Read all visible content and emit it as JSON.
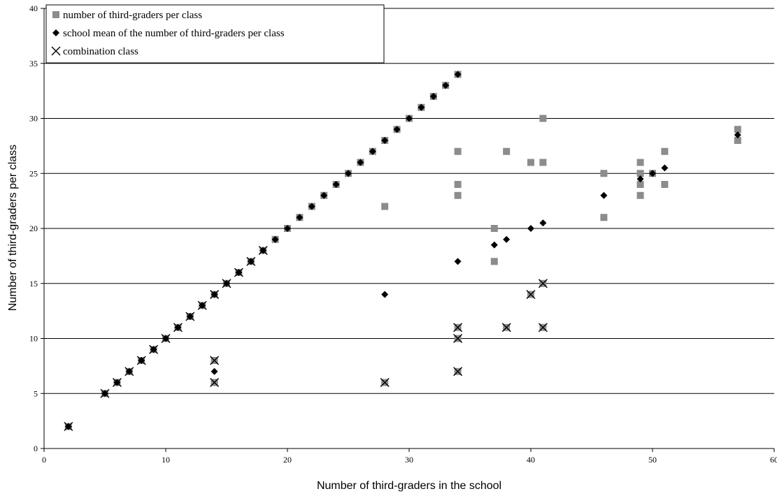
{
  "chart_data": {
    "type": "scatter",
    "title": "",
    "xlabel": "Number of third-graders in the school",
    "ylabel": "Number of third-graders per class",
    "xlim": [
      0,
      60
    ],
    "ylim": [
      0,
      40
    ],
    "xticks": [
      "0",
      "10",
      "20",
      "30",
      "40",
      "50",
      "60"
    ],
    "yticks": [
      "0",
      "5",
      "10",
      "15",
      "20",
      "25",
      "30",
      "35",
      "40"
    ],
    "grid": "horizontal",
    "legend_position": "top-left",
    "series": [
      {
        "name": "number of third-graders per class",
        "marker": "square",
        "color": "#8c8c8c",
        "points": [
          [
            2,
            2
          ],
          [
            5,
            5
          ],
          [
            6,
            6
          ],
          [
            7,
            7
          ],
          [
            8,
            8
          ],
          [
            9,
            9
          ],
          [
            10,
            10
          ],
          [
            11,
            11
          ],
          [
            12,
            12
          ],
          [
            13,
            13
          ],
          [
            14,
            14
          ],
          [
            15,
            15
          ],
          [
            16,
            16
          ],
          [
            17,
            17
          ],
          [
            18,
            18
          ],
          [
            19,
            19
          ],
          [
            20,
            20
          ],
          [
            21,
            21
          ],
          [
            22,
            22
          ],
          [
            23,
            23
          ],
          [
            24,
            24
          ],
          [
            25,
            25
          ],
          [
            26,
            26
          ],
          [
            27,
            27
          ],
          [
            28,
            28
          ],
          [
            29,
            29
          ],
          [
            30,
            30
          ],
          [
            31,
            31
          ],
          [
            32,
            32
          ],
          [
            33,
            33
          ],
          [
            34,
            34
          ],
          [
            14,
            8
          ],
          [
            14,
            6
          ],
          [
            28,
            22
          ],
          [
            28,
            6
          ],
          [
            34,
            27
          ],
          [
            34,
            24
          ],
          [
            34,
            23
          ],
          [
            34,
            11
          ],
          [
            34,
            10
          ],
          [
            34,
            7
          ],
          [
            37,
            20
          ],
          [
            37,
            17
          ],
          [
            38,
            27
          ],
          [
            38,
            11
          ],
          [
            40,
            26
          ],
          [
            40,
            14
          ],
          [
            41,
            30
          ],
          [
            41,
            26
          ],
          [
            41,
            15
          ],
          [
            41,
            11
          ],
          [
            46,
            25
          ],
          [
            46,
            21
          ],
          [
            49,
            26
          ],
          [
            49,
            25
          ],
          [
            49,
            24
          ],
          [
            49,
            23
          ],
          [
            50,
            25
          ],
          [
            51,
            27
          ],
          [
            51,
            24
          ],
          [
            57,
            29
          ],
          [
            57,
            28
          ]
        ]
      },
      {
        "name": "school mean of the number of third-graders per class",
        "marker": "diamond",
        "color": "#000000",
        "points": [
          [
            2,
            2
          ],
          [
            5,
            5
          ],
          [
            6,
            6
          ],
          [
            7,
            7
          ],
          [
            8,
            8
          ],
          [
            9,
            9
          ],
          [
            10,
            10
          ],
          [
            11,
            11
          ],
          [
            12,
            12
          ],
          [
            13,
            13
          ],
          [
            14,
            14
          ],
          [
            15,
            15
          ],
          [
            16,
            16
          ],
          [
            17,
            17
          ],
          [
            18,
            18
          ],
          [
            19,
            19
          ],
          [
            20,
            20
          ],
          [
            21,
            21
          ],
          [
            22,
            22
          ],
          [
            23,
            23
          ],
          [
            24,
            24
          ],
          [
            25,
            25
          ],
          [
            26,
            26
          ],
          [
            27,
            27
          ],
          [
            28,
            28
          ],
          [
            29,
            29
          ],
          [
            30,
            30
          ],
          [
            31,
            31
          ],
          [
            32,
            32
          ],
          [
            33,
            33
          ],
          [
            34,
            34
          ],
          [
            14,
            7
          ],
          [
            28,
            14
          ],
          [
            34,
            17
          ],
          [
            37,
            18.5
          ],
          [
            38,
            19
          ],
          [
            40,
            20
          ],
          [
            41,
            20.5
          ],
          [
            46,
            23
          ],
          [
            49,
            24.5
          ],
          [
            50,
            25
          ],
          [
            51,
            25.5
          ],
          [
            57,
            28.5
          ]
        ]
      },
      {
        "name": "combination class",
        "marker": "x",
        "color": "#000000",
        "points": [
          [
            2,
            2
          ],
          [
            5,
            5
          ],
          [
            6,
            6
          ],
          [
            7,
            7
          ],
          [
            8,
            8
          ],
          [
            9,
            9
          ],
          [
            10,
            10
          ],
          [
            11,
            11
          ],
          [
            12,
            12
          ],
          [
            13,
            13
          ],
          [
            14,
            14
          ],
          [
            15,
            15
          ],
          [
            16,
            16
          ],
          [
            17,
            17
          ],
          [
            18,
            18
          ],
          [
            14,
            8
          ],
          [
            14,
            6
          ],
          [
            28,
            6
          ],
          [
            34,
            11
          ],
          [
            34,
            10
          ],
          [
            34,
            7
          ],
          [
            38,
            11
          ],
          [
            40,
            14
          ],
          [
            41,
            15
          ],
          [
            41,
            11
          ]
        ]
      }
    ]
  }
}
